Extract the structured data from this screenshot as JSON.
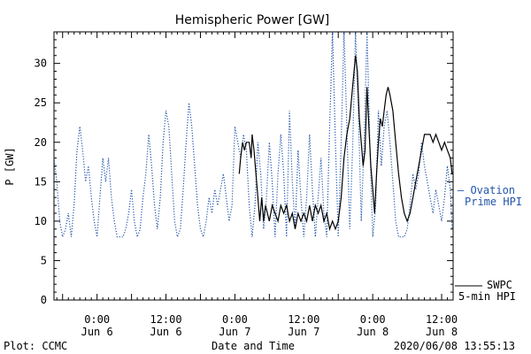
{
  "chart_data": {
    "type": "line",
    "title": "Hemispheric Power [GW]",
    "xlabel": "Date and Time",
    "ylabel": "P [GW]",
    "ylim": [
      0,
      34
    ],
    "yticks": [
      0,
      5,
      10,
      15,
      20,
      25,
      30
    ],
    "xlim": [
      "2020-06-05 16:30",
      "2020-06-08 14:00"
    ],
    "xticks": [
      {
        "at": "2020-06-06 00:00",
        "time": "0:00",
        "date": "Jun 6"
      },
      {
        "at": "2020-06-06 12:00",
        "time": "12:00",
        "date": "Jun 6"
      },
      {
        "at": "2020-06-07 00:00",
        "time": "0:00",
        "date": "Jun 7"
      },
      {
        "at": "2020-06-07 12:00",
        "time": "12:00",
        "date": "Jun 7"
      },
      {
        "at": "2020-06-08 00:00",
        "time": "0:00",
        "date": "Jun 8"
      },
      {
        "at": "2020-06-08 12:00",
        "time": "12:00",
        "date": "Jun 8"
      }
    ],
    "grid": false,
    "legend_position": "right",
    "series": [
      {
        "name": "SWPC 5-min HPI",
        "legend_line1": "SWPC",
        "legend_line2": "5-min HPI",
        "color": "#000000",
        "style": "solid",
        "points": [
          [
            "2020-06-07 00:45",
            16
          ],
          [
            "2020-06-07 01:00",
            18
          ],
          [
            "2020-06-07 01:20",
            20
          ],
          [
            "2020-06-07 01:40",
            19
          ],
          [
            "2020-06-07 02:00",
            20
          ],
          [
            "2020-06-07 02:30",
            20
          ],
          [
            "2020-06-07 02:50",
            18
          ],
          [
            "2020-06-07 03:00",
            21
          ],
          [
            "2020-06-07 03:20",
            19
          ],
          [
            "2020-06-07 03:40",
            16
          ],
          [
            "2020-06-07 04:00",
            13
          ],
          [
            "2020-06-07 04:20",
            10
          ],
          [
            "2020-06-07 04:40",
            13
          ],
          [
            "2020-06-07 05:00",
            10
          ],
          [
            "2020-06-07 05:20",
            12
          ],
          [
            "2020-06-07 05:40",
            11
          ],
          [
            "2020-06-07 06:00",
            10
          ],
          [
            "2020-06-07 06:30",
            12
          ],
          [
            "2020-06-07 07:00",
            11
          ],
          [
            "2020-06-07 07:30",
            10
          ],
          [
            "2020-06-07 08:00",
            12
          ],
          [
            "2020-06-07 08:30",
            11
          ],
          [
            "2020-06-07 09:00",
            12
          ],
          [
            "2020-06-07 09:30",
            10
          ],
          [
            "2020-06-07 10:00",
            11
          ],
          [
            "2020-06-07 10:30",
            9
          ],
          [
            "2020-06-07 11:00",
            11
          ],
          [
            "2020-06-07 11:30",
            10
          ],
          [
            "2020-06-07 12:00",
            11
          ],
          [
            "2020-06-07 12:30",
            10
          ],
          [
            "2020-06-07 13:00",
            12
          ],
          [
            "2020-06-07 13:30",
            10
          ],
          [
            "2020-06-07 14:00",
            12
          ],
          [
            "2020-06-07 14:30",
            11
          ],
          [
            "2020-06-07 15:00",
            12
          ],
          [
            "2020-06-07 15:30",
            10
          ],
          [
            "2020-06-07 16:00",
            11
          ],
          [
            "2020-06-07 16:30",
            9
          ],
          [
            "2020-06-07 17:00",
            10
          ],
          [
            "2020-06-07 17:30",
            9
          ],
          [
            "2020-06-07 18:00",
            10
          ],
          [
            "2020-06-07 18:30",
            13
          ],
          [
            "2020-06-07 19:00",
            18
          ],
          [
            "2020-06-07 19:30",
            21
          ],
          [
            "2020-06-07 20:00",
            23
          ],
          [
            "2020-06-07 20:30",
            27
          ],
          [
            "2020-06-07 21:00",
            31
          ],
          [
            "2020-06-07 21:20",
            29
          ],
          [
            "2020-06-07 21:40",
            23
          ],
          [
            "2020-06-07 22:00",
            20
          ],
          [
            "2020-06-07 22:20",
            17
          ],
          [
            "2020-06-07 22:40",
            19
          ],
          [
            "2020-06-07 23:00",
            27
          ],
          [
            "2020-06-07 23:20",
            22
          ],
          [
            "2020-06-07 23:40",
            17
          ],
          [
            "2020-06-08 00:00",
            14
          ],
          [
            "2020-06-08 00:20",
            11
          ],
          [
            "2020-06-08 00:40",
            16
          ],
          [
            "2020-06-08 01:00",
            20
          ],
          [
            "2020-06-08 01:20",
            23
          ],
          [
            "2020-06-08 01:40",
            22
          ],
          [
            "2020-06-08 02:00",
            24
          ],
          [
            "2020-06-08 02:20",
            26
          ],
          [
            "2020-06-08 02:40",
            27
          ],
          [
            "2020-06-08 03:00",
            26
          ],
          [
            "2020-06-08 03:30",
            24
          ],
          [
            "2020-06-08 04:00",
            20
          ],
          [
            "2020-06-08 04:30",
            16
          ],
          [
            "2020-06-08 05:00",
            13
          ],
          [
            "2020-06-08 05:30",
            11
          ],
          [
            "2020-06-08 06:00",
            10
          ],
          [
            "2020-06-08 06:30",
            11
          ],
          [
            "2020-06-08 07:00",
            13
          ],
          [
            "2020-06-08 07:30",
            15
          ],
          [
            "2020-06-08 08:00",
            17
          ],
          [
            "2020-06-08 08:30",
            19
          ],
          [
            "2020-06-08 09:00",
            21
          ],
          [
            "2020-06-08 10:00",
            21
          ],
          [
            "2020-06-08 10:30",
            20
          ],
          [
            "2020-06-08 11:00",
            21
          ],
          [
            "2020-06-08 11:30",
            20
          ],
          [
            "2020-06-08 12:00",
            19
          ],
          [
            "2020-06-08 12:30",
            20
          ],
          [
            "2020-06-08 13:00",
            19
          ],
          [
            "2020-06-08 13:30",
            18
          ],
          [
            "2020-06-08 13:50",
            16
          ]
        ]
      },
      {
        "name": "Ovation Prime HPI",
        "legend_line1": "— Ovation",
        "legend_line2": "Prime HPI",
        "color": "#2255aa",
        "style": "dotted",
        "points": [
          [
            "2020-06-05 16:30",
            18
          ],
          [
            "2020-06-05 17:00",
            15
          ],
          [
            "2020-06-05 17:30",
            10
          ],
          [
            "2020-06-05 18:00",
            8
          ],
          [
            "2020-06-05 18:30",
            9
          ],
          [
            "2020-06-05 19:00",
            11
          ],
          [
            "2020-06-05 19:30",
            8
          ],
          [
            "2020-06-05 20:00",
            12
          ],
          [
            "2020-06-05 20:30",
            19
          ],
          [
            "2020-06-05 21:00",
            22
          ],
          [
            "2020-06-05 21:30",
            19
          ],
          [
            "2020-06-05 22:00",
            15
          ],
          [
            "2020-06-05 22:30",
            17
          ],
          [
            "2020-06-05 23:00",
            13
          ],
          [
            "2020-06-05 23:30",
            10
          ],
          [
            "2020-06-06 00:00",
            8
          ],
          [
            "2020-06-06 00:30",
            13
          ],
          [
            "2020-06-06 01:00",
            18
          ],
          [
            "2020-06-06 01:30",
            15
          ],
          [
            "2020-06-06 02:00",
            18
          ],
          [
            "2020-06-06 02:30",
            13
          ],
          [
            "2020-06-06 03:00",
            10
          ],
          [
            "2020-06-06 03:30",
            8
          ],
          [
            "2020-06-06 04:00",
            8
          ],
          [
            "2020-06-06 04:30",
            8
          ],
          [
            "2020-06-06 05:00",
            9
          ],
          [
            "2020-06-06 05:30",
            11
          ],
          [
            "2020-06-06 06:00",
            14
          ],
          [
            "2020-06-06 06:30",
            10
          ],
          [
            "2020-06-06 07:00",
            8
          ],
          [
            "2020-06-06 07:30",
            9
          ],
          [
            "2020-06-06 08:00",
            13
          ],
          [
            "2020-06-06 08:30",
            16
          ],
          [
            "2020-06-06 09:00",
            21
          ],
          [
            "2020-06-06 09:30",
            17
          ],
          [
            "2020-06-06 10:00",
            12
          ],
          [
            "2020-06-06 10:30",
            9
          ],
          [
            "2020-06-06 11:00",
            13
          ],
          [
            "2020-06-06 11:30",
            20
          ],
          [
            "2020-06-06 12:00",
            24
          ],
          [
            "2020-06-06 12:30",
            22
          ],
          [
            "2020-06-06 13:00",
            16
          ],
          [
            "2020-06-06 13:30",
            10
          ],
          [
            "2020-06-06 14:00",
            8
          ],
          [
            "2020-06-06 14:30",
            9
          ],
          [
            "2020-06-06 15:00",
            14
          ],
          [
            "2020-06-06 15:30",
            20
          ],
          [
            "2020-06-06 16:00",
            25
          ],
          [
            "2020-06-06 16:30",
            22
          ],
          [
            "2020-06-06 17:00",
            17
          ],
          [
            "2020-06-06 17:30",
            12
          ],
          [
            "2020-06-06 18:00",
            9
          ],
          [
            "2020-06-06 18:30",
            8
          ],
          [
            "2020-06-06 19:00",
            10
          ],
          [
            "2020-06-06 19:30",
            13
          ],
          [
            "2020-06-06 20:00",
            11
          ],
          [
            "2020-06-06 20:30",
            14
          ],
          [
            "2020-06-06 21:00",
            12
          ],
          [
            "2020-06-06 21:30",
            14
          ],
          [
            "2020-06-06 22:00",
            16
          ],
          [
            "2020-06-06 22:30",
            13
          ],
          [
            "2020-06-06 23:00",
            10
          ],
          [
            "2020-06-06 23:30",
            12
          ],
          [
            "2020-06-07 00:00",
            22
          ],
          [
            "2020-06-07 00:30",
            20
          ],
          [
            "2020-06-07 01:00",
            18
          ],
          [
            "2020-06-07 01:30",
            21
          ],
          [
            "2020-06-07 02:00",
            19
          ],
          [
            "2020-06-07 02:30",
            12
          ],
          [
            "2020-06-07 03:00",
            8
          ],
          [
            "2020-06-07 03:30",
            12
          ],
          [
            "2020-06-07 04:00",
            20
          ],
          [
            "2020-06-07 04:30",
            16
          ],
          [
            "2020-06-07 05:00",
            9
          ],
          [
            "2020-06-07 05:30",
            13
          ],
          [
            "2020-06-07 06:00",
            20
          ],
          [
            "2020-06-07 06:30",
            15
          ],
          [
            "2020-06-07 07:00",
            8
          ],
          [
            "2020-06-07 07:30",
            16
          ],
          [
            "2020-06-07 08:00",
            21
          ],
          [
            "2020-06-07 08:30",
            16
          ],
          [
            "2020-06-07 09:00",
            8
          ],
          [
            "2020-06-07 09:30",
            24
          ],
          [
            "2020-06-07 10:00",
            15
          ],
          [
            "2020-06-07 10:30",
            9
          ],
          [
            "2020-06-07 11:00",
            19
          ],
          [
            "2020-06-07 11:30",
            13
          ],
          [
            "2020-06-07 12:00",
            8
          ],
          [
            "2020-06-07 12:30",
            13
          ],
          [
            "2020-06-07 13:00",
            21
          ],
          [
            "2020-06-07 13:30",
            14
          ],
          [
            "2020-06-07 14:00",
            8
          ],
          [
            "2020-06-07 14:30",
            13
          ],
          [
            "2020-06-07 15:00",
            18
          ],
          [
            "2020-06-07 15:30",
            11
          ],
          [
            "2020-06-07 16:00",
            8
          ],
          [
            "2020-06-07 16:30",
            22
          ],
          [
            "2020-06-07 17:00",
            34
          ],
          [
            "2020-06-07 17:30",
            20
          ],
          [
            "2020-06-07 18:00",
            8
          ],
          [
            "2020-06-07 18:30",
            20
          ],
          [
            "2020-06-07 19:00",
            34
          ],
          [
            "2020-06-07 19:30",
            22
          ],
          [
            "2020-06-07 20:00",
            9
          ],
          [
            "2020-06-07 20:30",
            19
          ],
          [
            "2020-06-07 21:00",
            34
          ],
          [
            "2020-06-07 21:30",
            24
          ],
          [
            "2020-06-07 22:00",
            10
          ],
          [
            "2020-06-07 22:30",
            20
          ],
          [
            "2020-06-07 23:00",
            34
          ],
          [
            "2020-06-07 23:30",
            20
          ],
          [
            "2020-06-08 00:00",
            8
          ],
          [
            "2020-06-08 00:30",
            12
          ],
          [
            "2020-06-08 01:00",
            24
          ],
          [
            "2020-06-08 01:30",
            17
          ],
          [
            "2020-06-08 02:00",
            22
          ],
          [
            "2020-06-08 02:30",
            24
          ],
          [
            "2020-06-08 03:00",
            20
          ],
          [
            "2020-06-08 03:30",
            15
          ],
          [
            "2020-06-08 04:00",
            10
          ],
          [
            "2020-06-08 04:30",
            8
          ],
          [
            "2020-06-08 05:00",
            8
          ],
          [
            "2020-06-08 05:30",
            8
          ],
          [
            "2020-06-08 06:00",
            9
          ],
          [
            "2020-06-08 06:30",
            12
          ],
          [
            "2020-06-08 07:00",
            16
          ],
          [
            "2020-06-08 07:30",
            14
          ],
          [
            "2020-06-08 08:00",
            16
          ],
          [
            "2020-06-08 08:30",
            20
          ],
          [
            "2020-06-08 09:00",
            17
          ],
          [
            "2020-06-08 09:30",
            15
          ],
          [
            "2020-06-08 10:00",
            13
          ],
          [
            "2020-06-08 10:30",
            11
          ],
          [
            "2020-06-08 11:00",
            14
          ],
          [
            "2020-06-08 11:30",
            12
          ],
          [
            "2020-06-08 12:00",
            10
          ],
          [
            "2020-06-08 12:30",
            13
          ],
          [
            "2020-06-08 13:00",
            17
          ],
          [
            "2020-06-08 13:30",
            14
          ],
          [
            "2020-06-08 13:50",
            9
          ]
        ]
      }
    ]
  },
  "footer": {
    "left": "Plot: CCMC",
    "right": "2020/06/08 13:55:13"
  }
}
